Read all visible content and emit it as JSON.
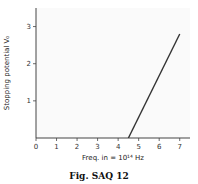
{
  "chart_data": {
    "type": "line",
    "title": "Fig. SAQ 12",
    "xlabel": "Freq. in = 10¹⁴ Hz",
    "ylabel": "Stopping potential V₀",
    "x": [
      4.5,
      7.0
    ],
    "values": [
      0.0,
      2.8
    ],
    "color": "#333333",
    "xlim": [
      0,
      7.5
    ],
    "ylim": [
      0,
      3.5
    ],
    "xticks": [
      0,
      1,
      2,
      3,
      4,
      5,
      6,
      7
    ],
    "yticks": [
      1,
      2,
      3
    ],
    "grid": false
  }
}
